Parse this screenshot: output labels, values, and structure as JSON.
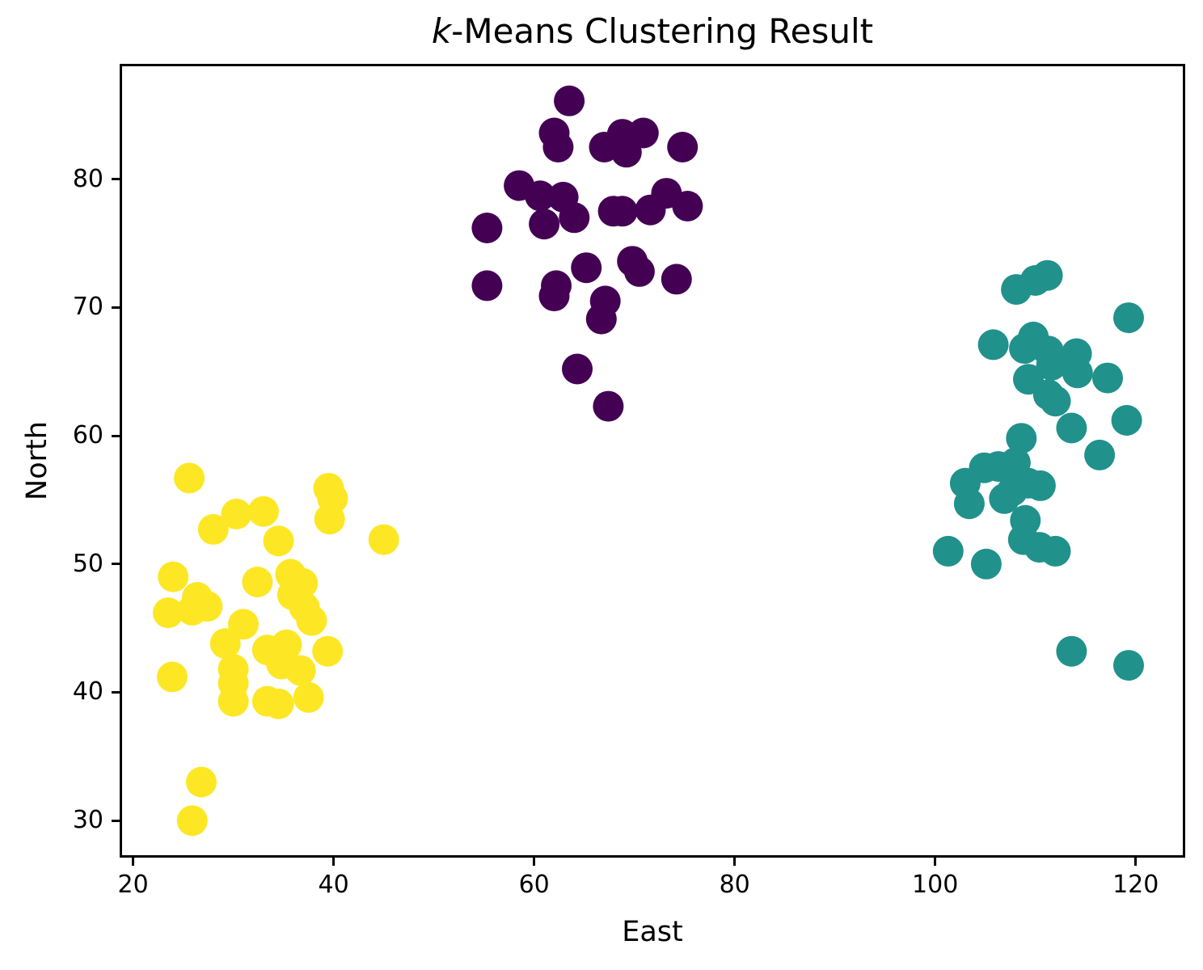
{
  "title": {
    "italic": "k",
    "rest": "-Means Clustering Result"
  },
  "chart_data": {
    "type": "scatter",
    "title": "k-Means Clustering Result",
    "xlabel": "East",
    "ylabel": "North",
    "xlim": [
      18.9,
      124.7
    ],
    "ylim": [
      27.3,
      88.8
    ],
    "xticks": [
      20,
      40,
      60,
      80,
      100,
      120
    ],
    "yticks": [
      30,
      40,
      50,
      60,
      70,
      80
    ],
    "grid": false,
    "legend": "none",
    "marker_radius_px": 19,
    "series": [
      {
        "name": "cluster-purple",
        "color": "#440154",
        "points": [
          [
            63.5,
            86.1
          ],
          [
            62.0,
            83.6
          ],
          [
            62.4,
            82.5
          ],
          [
            68.8,
            83.5
          ],
          [
            70.9,
            83.6
          ],
          [
            67.0,
            82.5
          ],
          [
            69.2,
            82.1
          ],
          [
            74.8,
            82.5
          ],
          [
            58.5,
            79.5
          ],
          [
            60.6,
            78.7
          ],
          [
            62.9,
            78.6
          ],
          [
            64.0,
            77.0
          ],
          [
            61.0,
            76.5
          ],
          [
            55.3,
            76.2
          ],
          [
            67.9,
            77.5
          ],
          [
            68.8,
            77.5
          ],
          [
            71.6,
            77.6
          ],
          [
            73.2,
            78.9
          ],
          [
            75.3,
            77.9
          ],
          [
            55.3,
            71.7
          ],
          [
            62.2,
            71.7
          ],
          [
            62.0,
            70.9
          ],
          [
            65.2,
            73.1
          ],
          [
            69.8,
            73.6
          ],
          [
            70.5,
            72.8
          ],
          [
            74.2,
            72.2
          ],
          [
            67.1,
            70.5
          ],
          [
            66.7,
            69.1
          ],
          [
            64.3,
            65.2
          ],
          [
            67.4,
            62.3
          ]
        ]
      },
      {
        "name": "cluster-teal",
        "color": "#21918c",
        "points": [
          [
            108.1,
            71.4
          ],
          [
            110.0,
            72.1
          ],
          [
            111.2,
            72.5
          ],
          [
            119.3,
            69.2
          ],
          [
            105.8,
            67.1
          ],
          [
            108.9,
            66.8
          ],
          [
            109.8,
            67.7
          ],
          [
            111.3,
            66.6
          ],
          [
            111.6,
            65.5
          ],
          [
            114.1,
            66.4
          ],
          [
            114.2,
            64.9
          ],
          [
            117.2,
            64.5
          ],
          [
            109.3,
            64.4
          ],
          [
            111.3,
            63.2
          ],
          [
            112.0,
            62.7
          ],
          [
            113.6,
            60.6
          ],
          [
            119.1,
            61.2
          ],
          [
            108.6,
            59.8
          ],
          [
            116.4,
            58.5
          ],
          [
            104.9,
            57.5
          ],
          [
            106.3,
            57.6
          ],
          [
            108.0,
            57.9
          ],
          [
            103.0,
            56.3
          ],
          [
            103.4,
            54.7
          ],
          [
            106.9,
            55.1
          ],
          [
            107.7,
            55.7
          ],
          [
            109.3,
            56.3
          ],
          [
            110.5,
            56.1
          ],
          [
            109.0,
            53.4
          ],
          [
            108.8,
            51.9
          ],
          [
            110.4,
            51.3
          ],
          [
            112.0,
            51.0
          ],
          [
            101.3,
            51.0
          ],
          [
            105.1,
            50.0
          ],
          [
            113.6,
            43.2
          ],
          [
            119.3,
            42.1
          ]
        ]
      },
      {
        "name": "cluster-yellow",
        "color": "#fde725",
        "points": [
          [
            25.6,
            56.7
          ],
          [
            39.5,
            55.9
          ],
          [
            39.9,
            55.1
          ],
          [
            30.3,
            53.9
          ],
          [
            33.0,
            54.1
          ],
          [
            28.0,
            52.7
          ],
          [
            39.6,
            53.5
          ],
          [
            45.0,
            51.9
          ],
          [
            34.5,
            51.8
          ],
          [
            24.0,
            49.0
          ],
          [
            32.4,
            48.6
          ],
          [
            35.7,
            49.2
          ],
          [
            36.9,
            48.5
          ],
          [
            35.9,
            47.6
          ],
          [
            26.4,
            47.4
          ],
          [
            27.4,
            46.7
          ],
          [
            25.9,
            46.4
          ],
          [
            23.5,
            46.2
          ],
          [
            37.1,
            46.6
          ],
          [
            37.8,
            45.6
          ],
          [
            31.0,
            45.3
          ],
          [
            29.2,
            43.8
          ],
          [
            33.4,
            43.3
          ],
          [
            35.3,
            43.7
          ],
          [
            39.4,
            43.2
          ],
          [
            23.9,
            41.2
          ],
          [
            30.0,
            41.8
          ],
          [
            30.0,
            40.7
          ],
          [
            34.8,
            42.2
          ],
          [
            36.7,
            41.7
          ],
          [
            30.0,
            39.3
          ],
          [
            33.4,
            39.3
          ],
          [
            34.5,
            39.1
          ],
          [
            37.5,
            39.6
          ],
          [
            26.8,
            33.0
          ],
          [
            25.9,
            30.0
          ]
        ]
      }
    ]
  }
}
